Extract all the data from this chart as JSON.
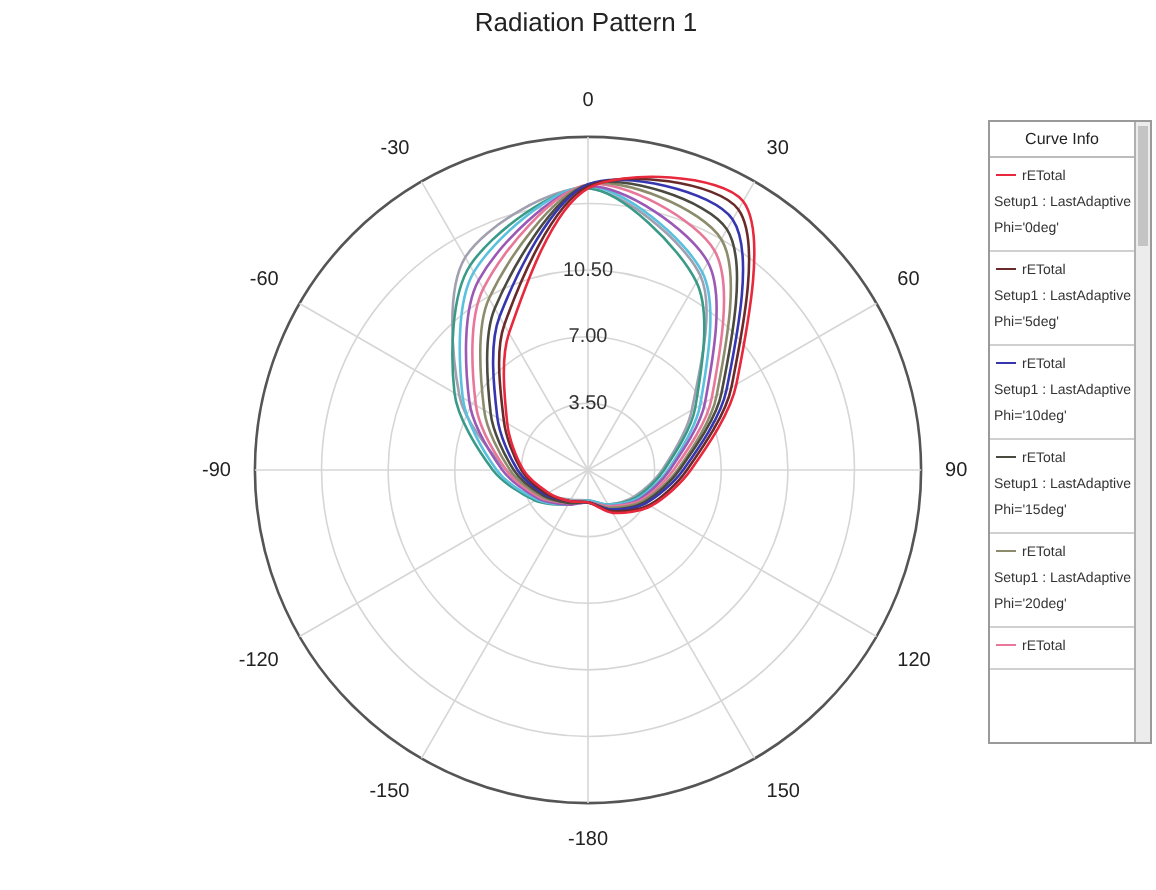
{
  "chart_data": {
    "type": "radar",
    "title": "Radiation Pattern 1",
    "legend_title": "Curve Info",
    "categories": [
      "0",
      "30",
      "60",
      "90",
      "120",
      "150",
      "-180",
      "-150",
      "-120",
      "-90",
      "-60",
      "-30"
    ],
    "ylim": [
      0,
      17.5
    ],
    "yticks": [
      {
        "value": 3.5,
        "label": "3.50"
      },
      {
        "value": 7,
        "label": "7.00"
      },
      {
        "value": 10.5,
        "label": "10.50"
      }
    ],
    "grid": true,
    "legend": "right",
    "marker": "none",
    "line_style": "solid",
    "series": [
      {
        "name": "rETotal\nSetup1 : LastAdaptive\nPhi='0deg'",
        "color": "#e8283c",
        "values": [
          14.8,
          16.3,
          9.0,
          5.4,
          3.8,
          2.6,
          1.7,
          1.9,
          2.4,
          3.4,
          4.9,
          8.3
        ]
      },
      {
        "name": "rETotal\nSetup1 : LastAdaptive\nPhi='5deg'",
        "color": "#6b2a2a",
        "values": [
          14.9,
          15.8,
          8.7,
          5.2,
          3.7,
          2.5,
          1.7,
          1.9,
          2.5,
          3.5,
          5.1,
          8.8
        ]
      },
      {
        "name": "rETotal\nSetup1 : LastAdaptive\nPhi='10deg'",
        "color": "#3636b0",
        "values": [
          15.0,
          15.2,
          8.4,
          5.0,
          3.5,
          2.4,
          1.7,
          1.9,
          2.6,
          3.7,
          5.5,
          9.3
        ]
      },
      {
        "name": "rETotal\nSetup1 : LastAdaptive\nPhi='15deg'",
        "color": "#4a4a40",
        "values": [
          15.0,
          14.6,
          8.1,
          4.8,
          3.4,
          2.4,
          1.7,
          2.0,
          2.7,
          3.9,
          5.9,
          9.8
        ]
      },
      {
        "name": "rETotal\nSetup1 : LastAdaptive\nPhi='20deg'",
        "color": "#8c8c6c",
        "values": [
          15.0,
          14.0,
          7.8,
          4.7,
          3.3,
          2.3,
          1.7,
          2.0,
          2.8,
          4.1,
          6.3,
          10.4
        ]
      },
      {
        "name": "rETotal",
        "color": "#e8789a",
        "values": [
          15.0,
          13.3,
          7.5,
          4.5,
          3.2,
          2.2,
          1.7,
          2.0,
          2.9,
          4.3,
          6.8,
          11.0
        ]
      },
      {
        "color": "#9b59b6",
        "values": [
          14.9,
          12.6,
          7.1,
          4.3,
          3.1,
          2.2,
          1.7,
          2.1,
          3.0,
          4.5,
          7.2,
          11.5
        ]
      },
      {
        "color": "#5bc0de",
        "values": [
          14.9,
          12.0,
          6.8,
          4.2,
          3.0,
          2.1,
          1.6,
          2.1,
          3.1,
          4.8,
          7.6,
          12.0
        ]
      },
      {
        "color": "#3a9a88",
        "values": [
          14.8,
          11.4,
          6.5,
          4.0,
          2.9,
          2.1,
          1.6,
          2.1,
          3.2,
          5.0,
          8.1,
          12.4
        ]
      },
      {
        "color": "#a0a0b0",
        "values": [
          14.8,
          11.8,
          6.3,
          3.9,
          2.8,
          2.1,
          1.6,
          1.8,
          2.6,
          4.3,
          7.8,
          12.9
        ]
      }
    ]
  }
}
